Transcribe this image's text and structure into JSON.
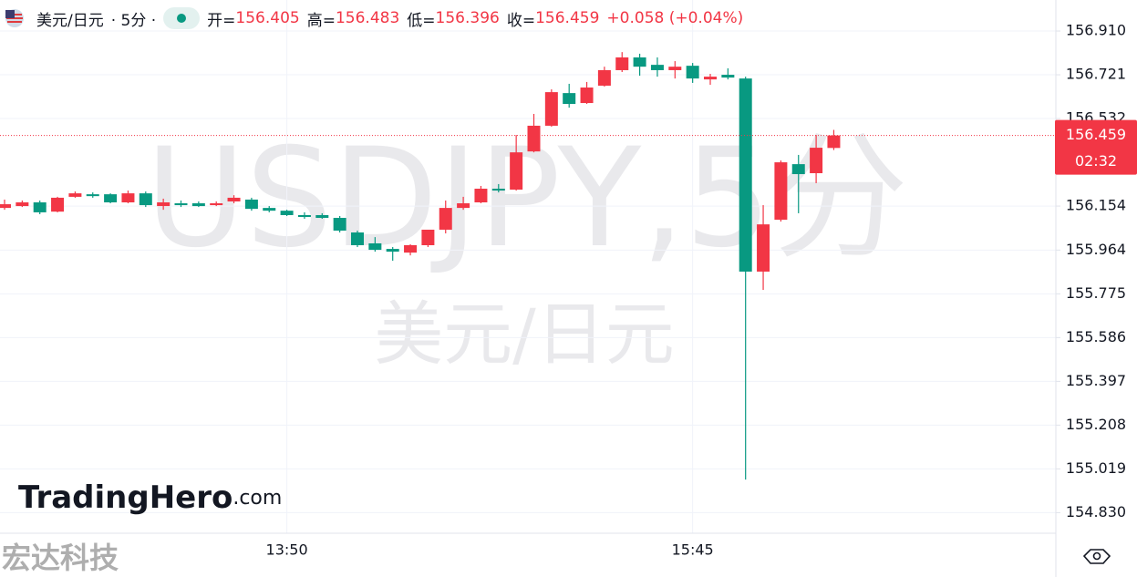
{
  "chart_data": {
    "type": "candlestick",
    "symbol": "美元/日元",
    "interval_text": "· 5分 ·",
    "ohlc_header": {
      "open_label": "开=",
      "open": "156.405",
      "high_label": "高=",
      "high": "156.483",
      "low_label": "低=",
      "low": "156.396",
      "close_label": "收=",
      "close": "156.459",
      "change": "+0.058 (+0.04%)"
    },
    "watermark": "USDJPY,5分",
    "watermark_subtitle": "美元/日元",
    "logo": {
      "name": "TradingHero",
      "suffix": ".com"
    },
    "corner_text": "宏达科技",
    "last_price": {
      "value": 156.459,
      "label": "156.459"
    },
    "countdown": "02:32",
    "up_color": "#f23645",
    "down_color": "#089981",
    "grid": true,
    "ylim": [
      154.741,
      157.044
    ],
    "yticks": [
      {
        "value": 156.91,
        "label": "156.910"
      },
      {
        "value": 156.721,
        "label": "156.721"
      },
      {
        "value": 156.532,
        "label": "156.532"
      },
      {
        "value": 156.154,
        "label": "156.154"
      },
      {
        "value": 155.964,
        "label": "155.964"
      },
      {
        "value": 155.775,
        "label": "155.775"
      },
      {
        "value": 155.586,
        "label": "155.586"
      },
      {
        "value": 155.397,
        "label": "155.397"
      },
      {
        "value": 155.208,
        "label": "155.208"
      },
      {
        "value": 155.019,
        "label": "155.019"
      },
      {
        "value": 154.83,
        "label": "154.830"
      }
    ],
    "categories": [
      null,
      null,
      null,
      null,
      null,
      null,
      null,
      null,
      null,
      null,
      null,
      null,
      null,
      null,
      null,
      null,
      "13:50",
      null,
      null,
      null,
      null,
      null,
      null,
      null,
      null,
      null,
      null,
      null,
      null,
      null,
      null,
      null,
      null,
      null,
      null,
      null,
      null,
      null,
      null,
      "15:45",
      null,
      null,
      null,
      null,
      null,
      null,
      null,
      null
    ],
    "open": [
      156.146,
      156.154,
      156.17,
      156.13,
      156.194,
      156.205,
      156.205,
      156.17,
      156.209,
      156.154,
      156.166,
      156.166,
      156.158,
      156.174,
      156.182,
      156.146,
      156.134,
      156.115,
      156.115,
      156.103,
      156.04,
      155.993,
      155.969,
      155.953,
      155.985,
      156.052,
      156.146,
      156.17,
      156.229,
      156.225,
      156.39,
      156.501,
      156.642,
      156.599,
      156.674,
      156.741,
      156.796,
      156.764,
      156.741,
      156.76,
      156.701,
      156.721,
      156.705,
      155.871,
      156.095,
      156.335,
      156.296,
      156.405
    ],
    "high": [
      156.182,
      156.178,
      156.178,
      156.194,
      156.217,
      156.213,
      156.209,
      156.221,
      156.217,
      156.186,
      156.178,
      156.174,
      156.174,
      156.201,
      156.19,
      156.154,
      156.138,
      156.127,
      156.123,
      156.111,
      156.048,
      156.02,
      155.977,
      155.989,
      156.052,
      156.178,
      156.194,
      156.241,
      156.249,
      156.461,
      156.552,
      156.658,
      156.682,
      156.69,
      156.756,
      156.819,
      156.812,
      156.796,
      156.78,
      156.772,
      156.725,
      156.749,
      156.713,
      156.158,
      156.351,
      156.375,
      156.461,
      156.483
    ],
    "low": [
      156.138,
      156.15,
      156.119,
      156.127,
      156.19,
      156.19,
      156.166,
      156.166,
      156.15,
      156.138,
      156.15,
      156.15,
      156.154,
      156.166,
      156.134,
      156.127,
      156.111,
      156.099,
      156.099,
      156.04,
      155.977,
      155.957,
      155.918,
      155.941,
      155.977,
      156.036,
      156.138,
      156.166,
      156.213,
      156.221,
      156.386,
      156.497,
      156.579,
      156.595,
      156.67,
      156.733,
      156.717,
      156.713,
      156.705,
      156.686,
      156.678,
      156.701,
      154.973,
      155.792,
      156.087,
      156.123,
      156.253,
      156.396
    ],
    "close": [
      156.162,
      156.17,
      156.127,
      156.19,
      156.209,
      156.197,
      156.17,
      156.209,
      156.158,
      156.17,
      156.158,
      156.154,
      156.166,
      156.19,
      156.142,
      156.134,
      156.115,
      156.107,
      156.103,
      156.048,
      155.985,
      155.965,
      155.957,
      155.985,
      156.052,
      156.146,
      156.166,
      156.229,
      156.221,
      156.386,
      156.501,
      156.646,
      156.595,
      156.666,
      156.741,
      156.796,
      156.756,
      156.741,
      156.756,
      156.705,
      156.713,
      156.709,
      155.871,
      156.075,
      156.343,
      156.292,
      156.406,
      156.459
    ]
  }
}
